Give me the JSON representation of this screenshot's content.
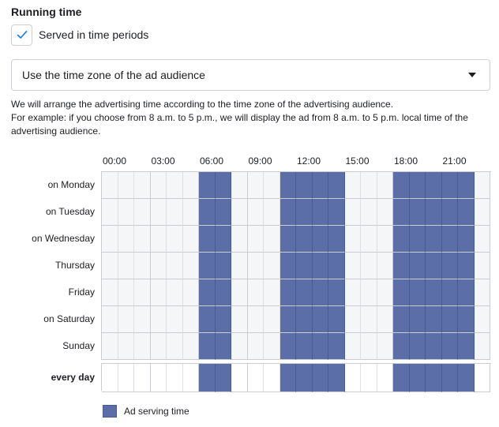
{
  "section": {
    "title": "Running time"
  },
  "checkbox": {
    "label": "Served in time periods",
    "checked": true,
    "icon": "check-icon"
  },
  "timezone_select": {
    "value": "Use the time zone of the ad audience",
    "icon": "caret-down-icon"
  },
  "description": {
    "line1": "We will arrange the advertising time according to the time zone of the advertising audience.",
    "line2": "For example: if you choose from 8 a.m. to 5 p.m., we will display the ad from 8 a.m. to 5 p.m. local time of the advertising audience."
  },
  "schedule": {
    "hour_labels": [
      "00:00",
      "03:00",
      "06:00",
      "09:00",
      "12:00",
      "15:00",
      "18:00",
      "21:00"
    ],
    "days": [
      "on Monday",
      "on Tuesday",
      "on Wednesday",
      "Thursday",
      "Friday",
      "on Saturday",
      "Sunday"
    ],
    "every_day_label": "every day",
    "active_hours": [
      6,
      7,
      11,
      12,
      13,
      14,
      18,
      19,
      20,
      21,
      22
    ],
    "active_color": "#5b6ea8"
  },
  "legend": {
    "label": "Ad serving time"
  }
}
